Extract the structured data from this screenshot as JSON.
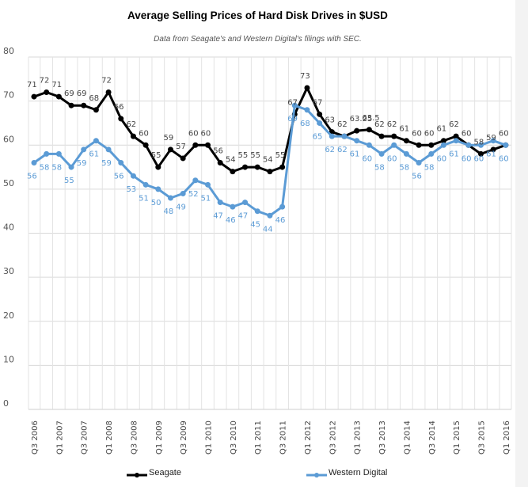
{
  "chart_data": {
    "type": "line",
    "title": "Average Selling Prices of Hard Disk Drives in $USD",
    "subtitle": "Data from Seagate's and Western Digital's filings with SEC.",
    "xlabel": "",
    "ylabel": "",
    "ylim": [
      0,
      80
    ],
    "yticks": [
      0,
      10,
      20,
      30,
      40,
      50,
      60,
      70,
      80
    ],
    "grid": true,
    "legend_position": "bottom",
    "x": [
      "Q3 2006",
      "Q4 2006",
      "Q1 2007",
      "Q2 2007",
      "Q3 2007",
      "Q4 2007",
      "Q1 2008",
      "Q2 2008",
      "Q3 2008",
      "Q4 2008",
      "Q1 2009",
      "Q2 2009",
      "Q3 2009",
      "Q4 2009",
      "Q1 2010",
      "Q2 2010",
      "Q3 2010",
      "Q4 2010",
      "Q1 2011",
      "Q2 2011",
      "Q3 2011",
      "Q4 2011",
      "Q1 2012",
      "Q2 2012",
      "Q3 2012",
      "Q4 2012",
      "Q1 2013",
      "Q2 2013",
      "Q3 2013",
      "Q4 2013",
      "Q1 2014",
      "Q2 2014",
      "Q3 2014",
      "Q4 2014",
      "Q1 2015",
      "Q2 2015",
      "Q3 2015",
      "Q4 2015",
      "Q1 2016"
    ],
    "xtick_labels": [
      "Q3 2006",
      "Q1 2007",
      "Q3 2007",
      "Q1 2008",
      "Q3 2008",
      "Q1 2009",
      "Q3 2009",
      "Q1 2010",
      "Q3 2010",
      "Q1 2011",
      "Q3 2011",
      "Q1 2012",
      "Q3 2012",
      "Q1 2013",
      "Q3 2013",
      "Q1 2014",
      "Q3 2014",
      "Q1 2015",
      "Q3 2015",
      "Q1 2016"
    ],
    "series": [
      {
        "name": "Seagate",
        "color": "#000000",
        "label_color": "#444444",
        "values": [
          71,
          72,
          71,
          69,
          69,
          68,
          72,
          66,
          62,
          60,
          55,
          59,
          57,
          60,
          60,
          56,
          54,
          55,
          55,
          54,
          55,
          67,
          73,
          67,
          63,
          62,
          63.25,
          63.5,
          62,
          62,
          61,
          60,
          60,
          61,
          62,
          60,
          58,
          59,
          60
        ]
      },
      {
        "name": "Western Digital",
        "color": "#5b9bd5",
        "label_color": "#5b9bd5",
        "values": [
          56,
          58,
          58,
          55,
          59,
          61,
          59,
          56,
          53,
          51,
          50,
          48,
          49,
          52,
          51,
          47,
          46,
          47,
          45,
          44,
          46,
          69,
          68,
          65,
          62,
          62,
          61,
          60,
          58,
          60,
          58,
          56,
          58,
          60,
          61,
          60,
          60,
          61,
          60
        ]
      }
    ]
  }
}
